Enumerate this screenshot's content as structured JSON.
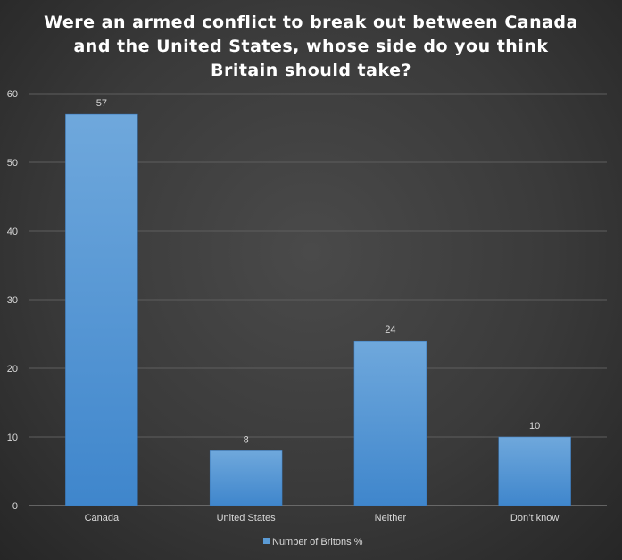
{
  "chart_data": {
    "type": "bar",
    "title_lines": [
      "Were an armed conflict to break out between Canada",
      "and the United States, whose side do you think",
      "Britain should take?"
    ],
    "categories": [
      "Canada",
      "United States",
      "Neither",
      "Don’t know"
    ],
    "series": [
      {
        "name": "Number of Britons %",
        "values": [
          57,
          8,
          24,
          10
        ],
        "color": "#5b9bd5"
      }
    ],
    "data_labels": [
      "57",
      "8",
      "24",
      "10"
    ],
    "y_ticks": [
      "0",
      "10",
      "20",
      "30",
      "40",
      "50",
      "60"
    ],
    "ylim": [
      0,
      60
    ],
    "grid": true,
    "legend_position": "bottom",
    "xlabel": "",
    "ylabel": ""
  }
}
